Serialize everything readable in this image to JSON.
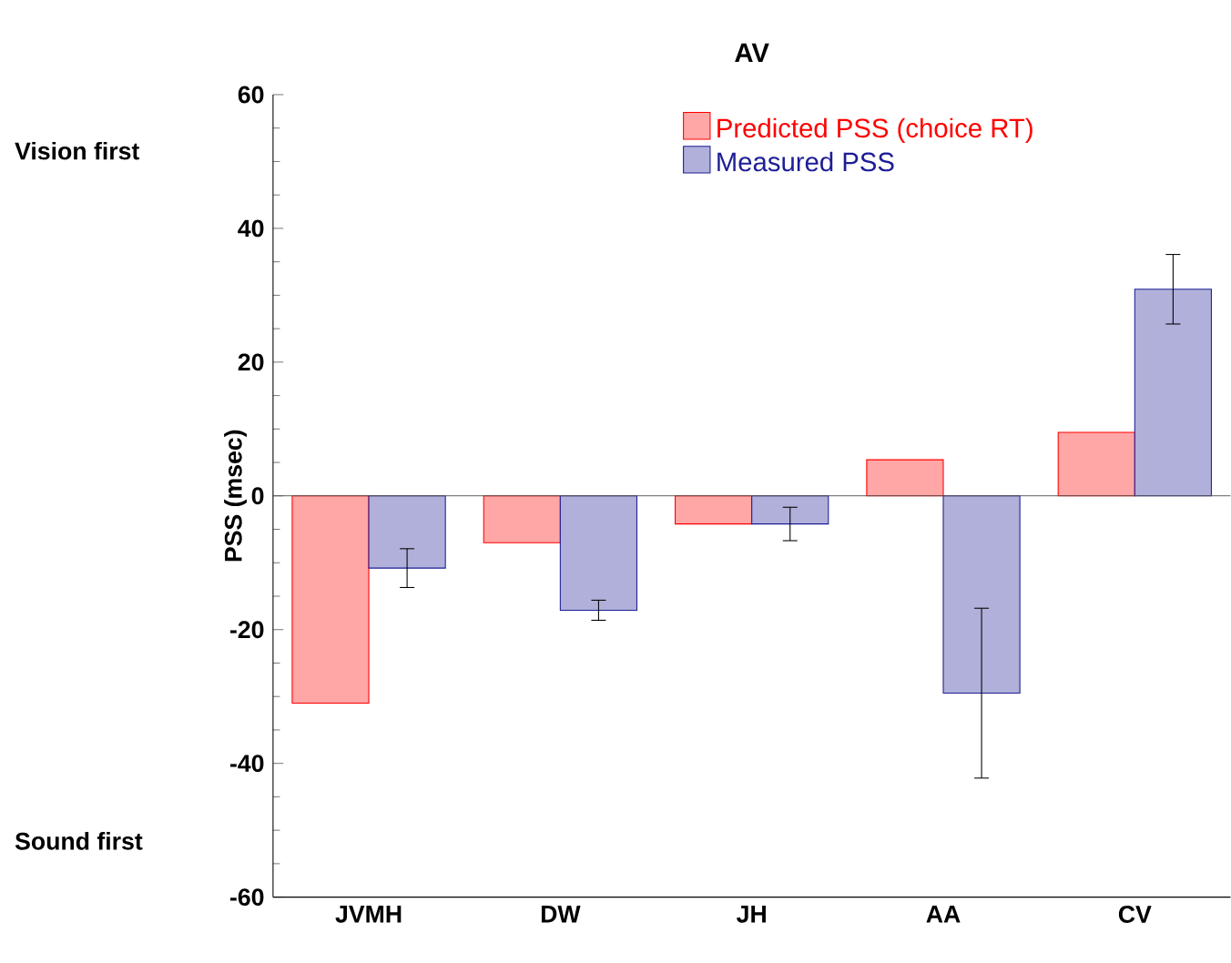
{
  "chart_data": {
    "type": "bar",
    "title": "AV",
    "ylabel": "PSS (msec)",
    "categories": [
      "JVMH",
      "DW",
      "JH",
      "AA",
      "CV"
    ],
    "series": [
      {
        "name": "Predicted PSS (choice RT)",
        "color": "#ff0000",
        "values": [
          -31,
          -7,
          -4.2,
          5.4,
          9.5
        ]
      },
      {
        "name": "Measured PSS",
        "color": "#1e1e96",
        "values": [
          -10.8,
          -17.1,
          -4.2,
          -29.5,
          30.9
        ],
        "errors": [
          2.9,
          1.5,
          2.5,
          12.7,
          5.2
        ]
      }
    ],
    "ylim": [
      -60,
      60
    ],
    "yticks": [
      -60,
      -40,
      -20,
      0,
      20,
      40,
      60
    ],
    "ref_lines": [
      {
        "axis": "y",
        "value": 0,
        "color": "#555555"
      }
    ],
    "annotations": [
      "Vision first",
      "Sound first"
    ],
    "legend": "top",
    "grid": false
  }
}
